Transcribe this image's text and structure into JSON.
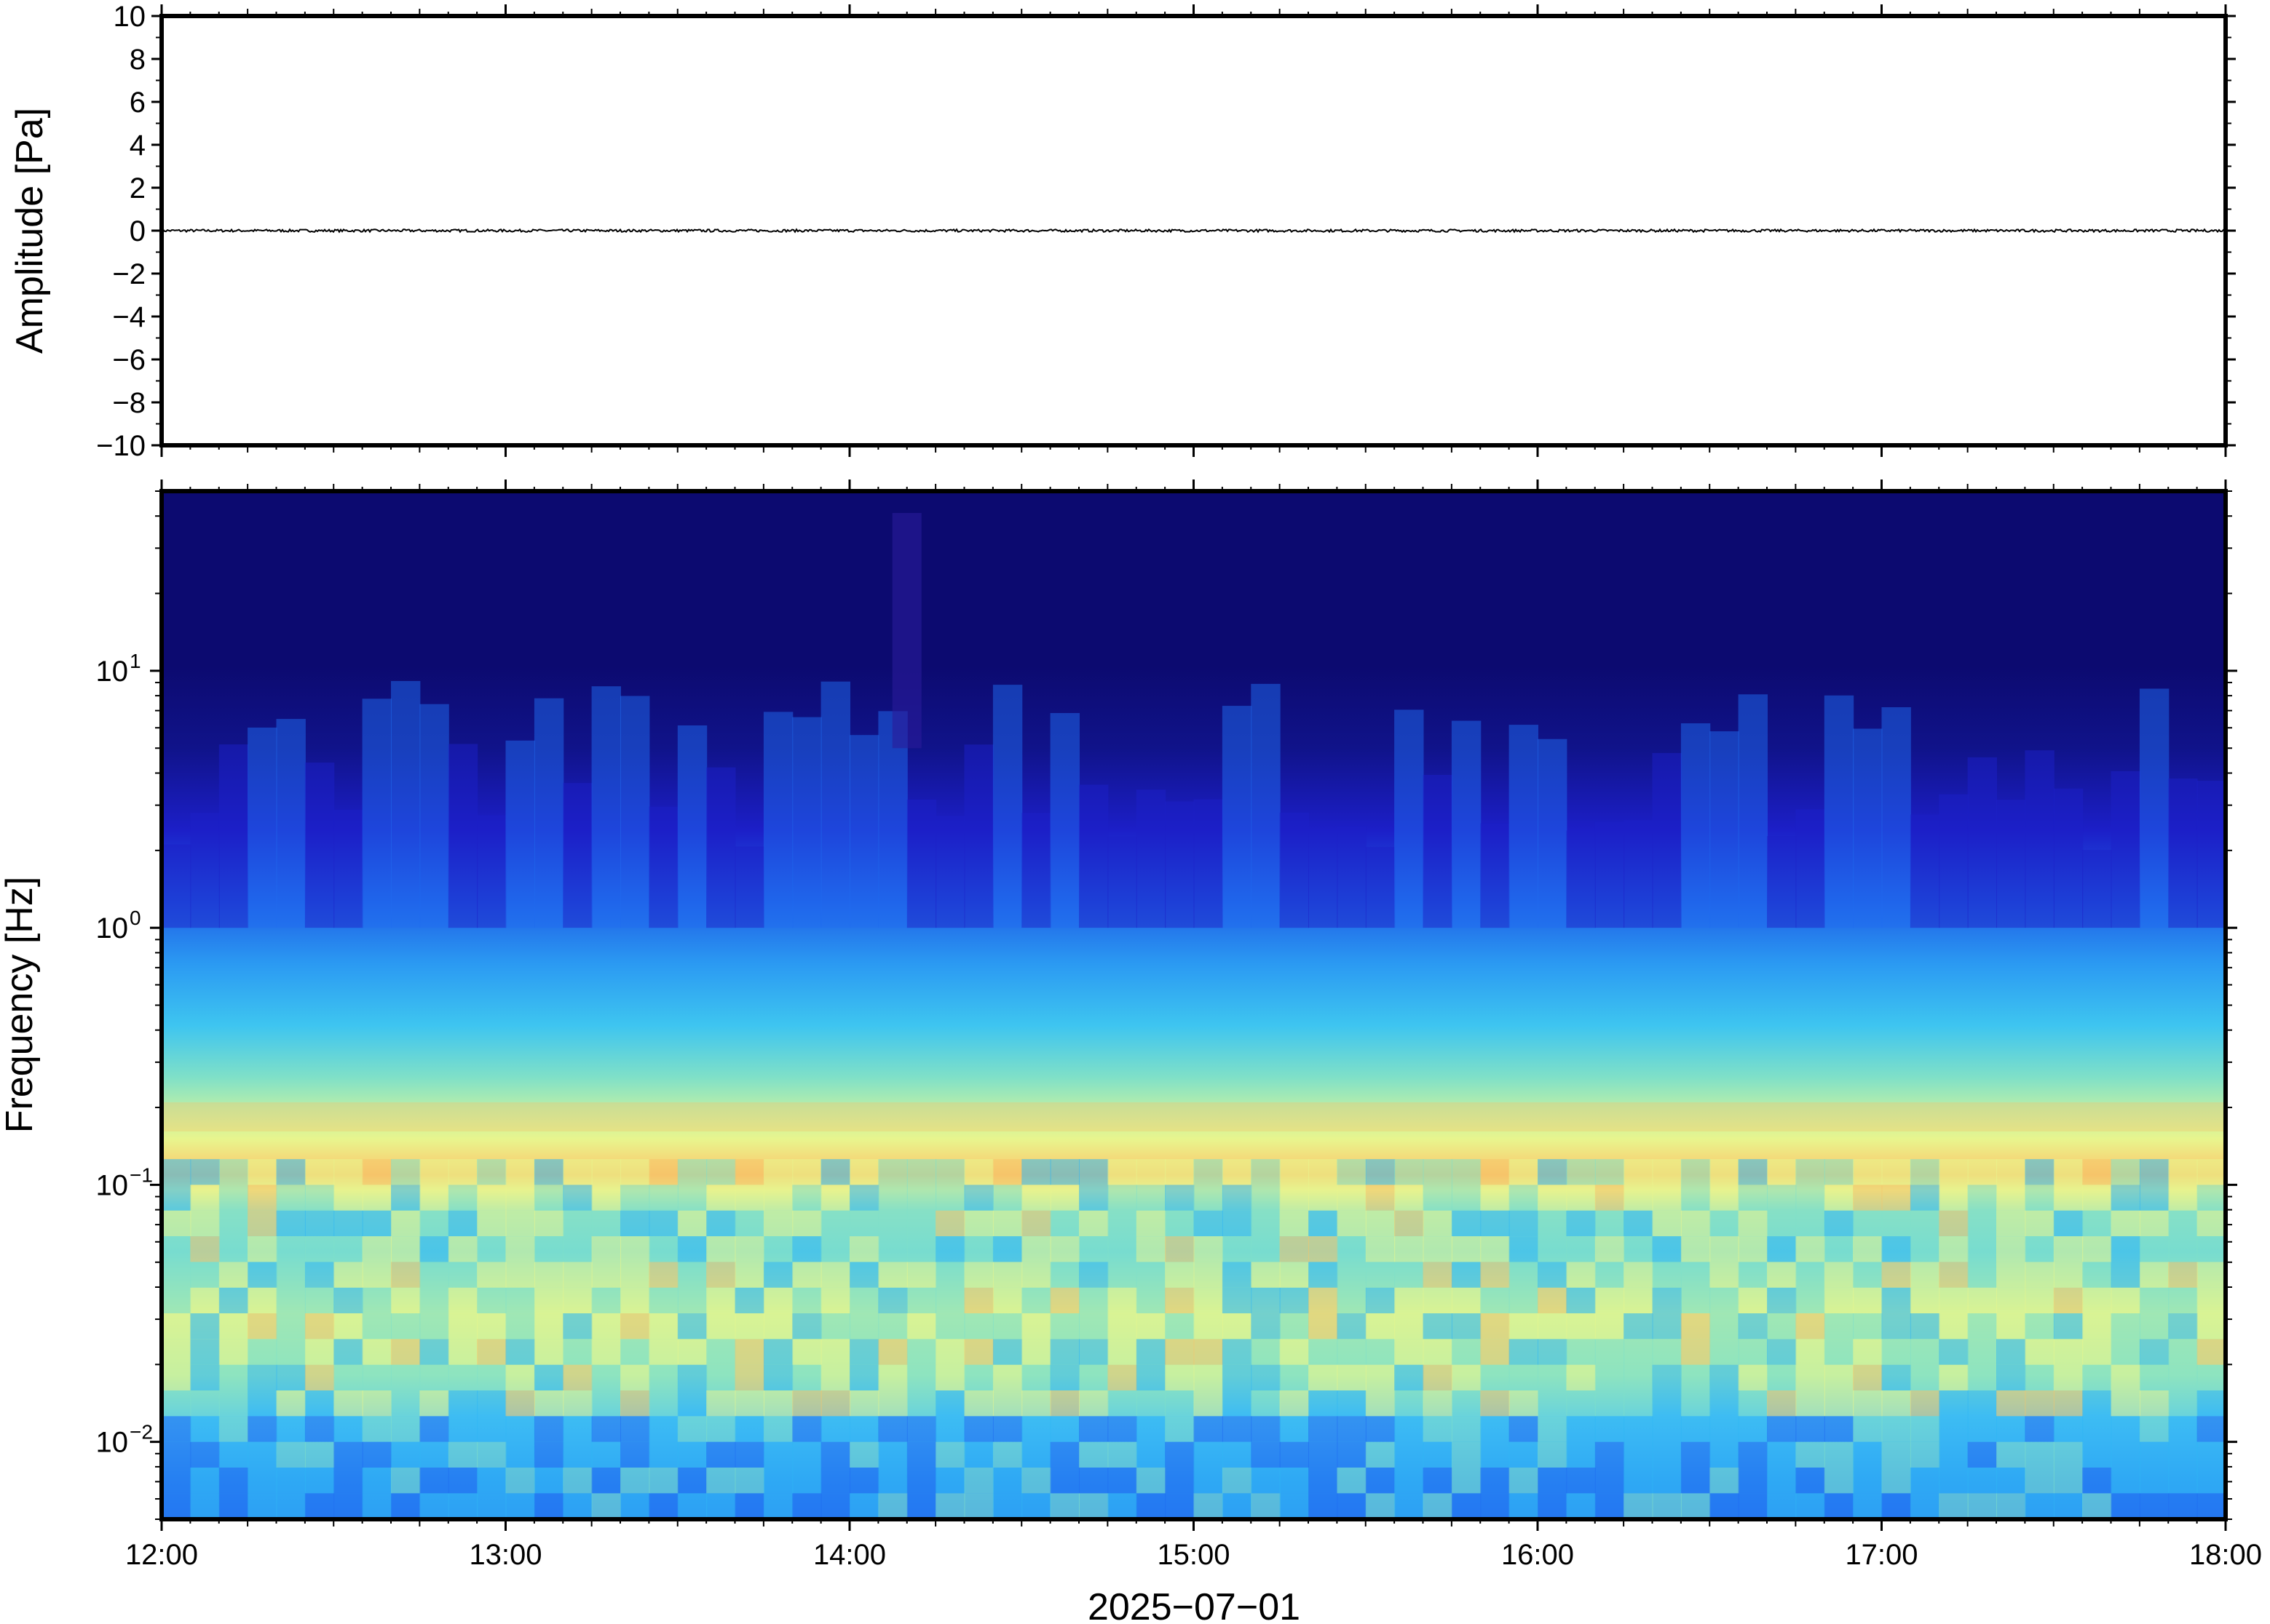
{
  "chart_data": [
    {
      "type": "line",
      "name": "waveform",
      "ylabel": "Amplitude [Pa]",
      "ylim": [
        -10,
        10
      ],
      "yticks": [
        10,
        8,
        6,
        4,
        2,
        0,
        -2,
        -4,
        -6,
        -8,
        -10
      ],
      "ytick_labels": [
        "10",
        "8",
        "6",
        "4",
        "2",
        "0",
        "−2",
        "−4",
        "−6",
        "−8",
        "−10"
      ],
      "xlim": [
        "12:00",
        "18:00"
      ],
      "series": [
        {
          "color": "#000000",
          "level": 0,
          "approx_peak_amplitude": 0.1
        }
      ],
      "grid": false
    },
    {
      "type": "heatmap",
      "name": "spectrogram",
      "ylabel": "Frequency [Hz]",
      "yscale": "log",
      "ylim": [
        0.005,
        50
      ],
      "yticks": [
        0.01,
        0.1,
        1,
        10
      ],
      "ytick_labels": [
        {
          "base": "10",
          "exp": "−2"
        },
        {
          "base": "10",
          "exp": "−1"
        },
        {
          "base": "10",
          "exp": "0"
        },
        {
          "base": "10",
          "exp": "1"
        }
      ],
      "xlim": [
        "12:00",
        "18:00"
      ],
      "xticks": [
        "12:00",
        "13:00",
        "14:00",
        "15:00",
        "16:00",
        "17:00",
        "18:00"
      ],
      "xlabel": "2025−07−01",
      "colormap": [
        "#0c0a70",
        "#1c1fc8",
        "#1f6bf0",
        "#2fb6f4",
        "#7fe0c8",
        "#e8f58e",
        "#f6c46a",
        "#e8763a"
      ],
      "features": {
        "microseism_band_hz": [
          0.15,
          0.25
        ],
        "noise_floor_above_hz": 5,
        "transient_burst_time": "14:10"
      },
      "grid": false
    }
  ]
}
